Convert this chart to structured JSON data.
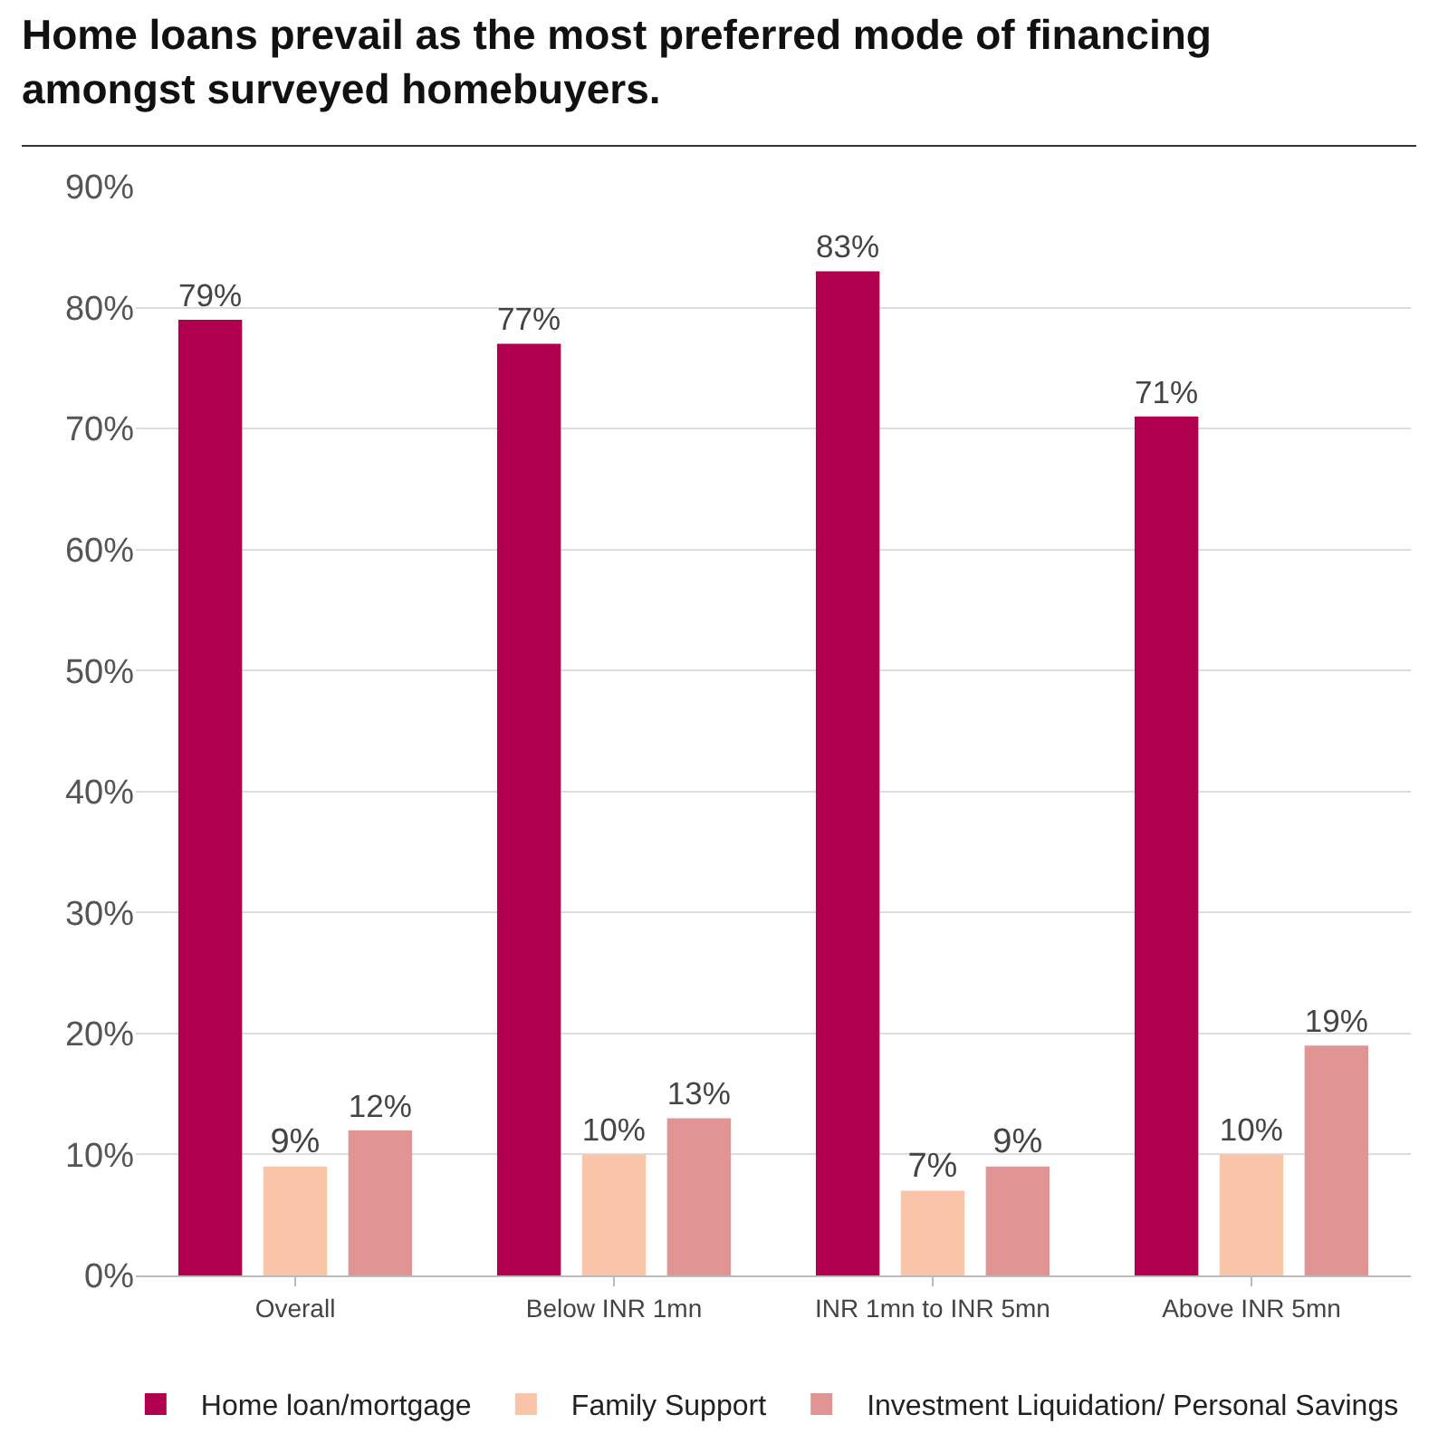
{
  "chart_data": {
    "type": "bar",
    "title": "Home loans prevail as the most preferred mode of financing amongst surveyed homebuyers.",
    "categories": [
      "Overall",
      "Below INR 1mn",
      "INR 1mn to INR 5mn",
      "Above INR 5mn"
    ],
    "series": [
      {
        "name": "Home loan/mortgage",
        "color": "#b0004f",
        "values": [
          79,
          77,
          83,
          71
        ],
        "value_labels": [
          "79%",
          "77%",
          "83%",
          "71%"
        ]
      },
      {
        "name": "Family Support",
        "color": "#f9c4a8",
        "values": [
          9,
          10,
          7,
          10
        ],
        "value_labels": [
          "9%",
          "10%",
          "7%",
          "10%"
        ]
      },
      {
        "name": "Investment Liquidation/ Personal Savings",
        "color": "#e09494",
        "values": [
          12,
          13,
          9,
          19
        ],
        "value_labels": [
          "12%",
          "13%",
          "9%",
          "19%"
        ]
      }
    ],
    "ylim": [
      0,
      90
    ],
    "yticks": [
      {
        "value": 0,
        "label": "0%"
      },
      {
        "value": 10,
        "label": "10%"
      },
      {
        "value": 20,
        "label": "20%"
      },
      {
        "value": 30,
        "label": "30%"
      },
      {
        "value": 40,
        "label": "40%"
      },
      {
        "value": 50,
        "label": "50%"
      },
      {
        "value": 60,
        "label": "60%"
      },
      {
        "value": 70,
        "label": "70%"
      },
      {
        "value": 80,
        "label": "80%"
      },
      {
        "value": 90,
        "label": "90%"
      }
    ],
    "grid": "y",
    "legend": "bottom"
  }
}
